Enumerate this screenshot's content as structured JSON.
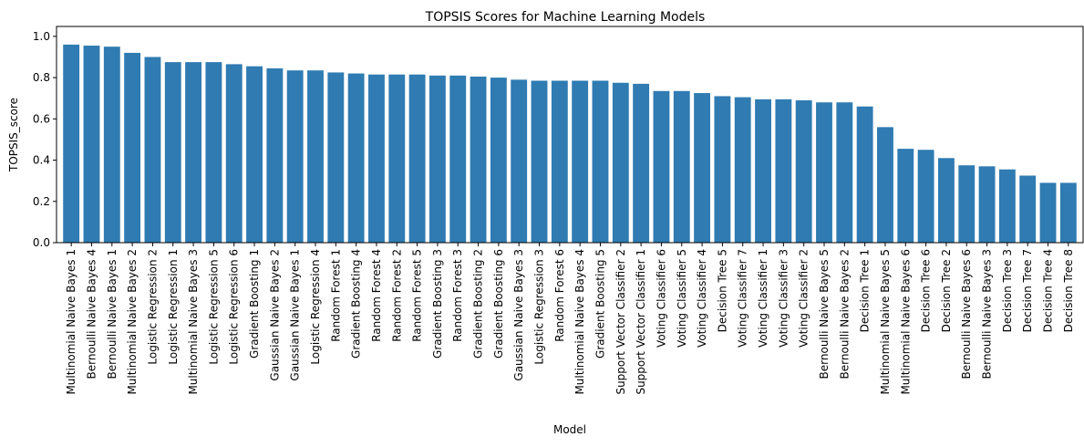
{
  "chart_data": {
    "type": "bar",
    "title": "TOPSIS Scores for Machine Learning Models",
    "xlabel": "Model",
    "ylabel": "TOPSIS_score",
    "ylim": [
      0,
      1.0
    ],
    "yticks": [
      "0.0",
      "0.2",
      "0.4",
      "0.6",
      "0.8",
      "1.0"
    ],
    "grid": false,
    "bar_color": "#2f7bb2",
    "categories": [
      "Multinomial Naive Bayes 1",
      "Bernoulli Naive Bayes 4",
      "Bernoulli Naive Bayes 1",
      "Multinomial Naive Bayes 2",
      "Logistic Regression 2",
      "Logistic Regression 1",
      "Multinomial Naive Bayes 3",
      "Logistic Regression 5",
      "Logistic Regression 6",
      "Gradient Boosting 1",
      "Gaussian Naive Bayes 2",
      "Gaussian Naive Bayes 1",
      "Logistic Regression 4",
      "Random Forest 1",
      "Gradient Boosting 4",
      "Random Forest 4",
      "Random Forest 2",
      "Random Forest 5",
      "Gradient Boosting 3",
      "Random Forest 3",
      "Gradient Boosting 2",
      "Gradient Boosting 6",
      "Gaussian Naive Bayes 3",
      "Logistic Regression 3",
      "Random Forest 6",
      "Multinomial Naive Bayes 4",
      "Gradient Boosting 5",
      "Support Vector Classifier 2",
      "Support Vector Classifier 1",
      "Voting Classifier 6",
      "Voting Classifier 5",
      "Voting Classifier 4",
      "Decision Tree 5",
      "Voting Classifier 7",
      "Voting Classifier 1",
      "Voting Classifier 3",
      "Voting Classifier 2",
      "Bernoulli Naive Bayes 5",
      "Bernoulli Naive Bayes 2",
      "Decision Tree 1",
      "Multinomial Naive Bayes 5",
      "Multinomial Naive Bayes 6",
      "Decision Tree 6",
      "Decision Tree 2",
      "Bernoulli Naive Bayes 6",
      "Bernoulli Naive Bayes 3",
      "Decision Tree 3",
      "Decision Tree 7",
      "Decision Tree 4",
      "Decision Tree 8"
    ],
    "values": [
      0.96,
      0.955,
      0.95,
      0.92,
      0.9,
      0.875,
      0.875,
      0.875,
      0.865,
      0.855,
      0.845,
      0.835,
      0.835,
      0.825,
      0.82,
      0.815,
      0.815,
      0.815,
      0.81,
      0.81,
      0.805,
      0.8,
      0.79,
      0.785,
      0.785,
      0.785,
      0.785,
      0.775,
      0.77,
      0.735,
      0.735,
      0.725,
      0.71,
      0.705,
      0.695,
      0.695,
      0.69,
      0.68,
      0.68,
      0.66,
      0.56,
      0.455,
      0.45,
      0.41,
      0.375,
      0.37,
      0.355,
      0.325,
      0.29,
      0.29
    ]
  }
}
